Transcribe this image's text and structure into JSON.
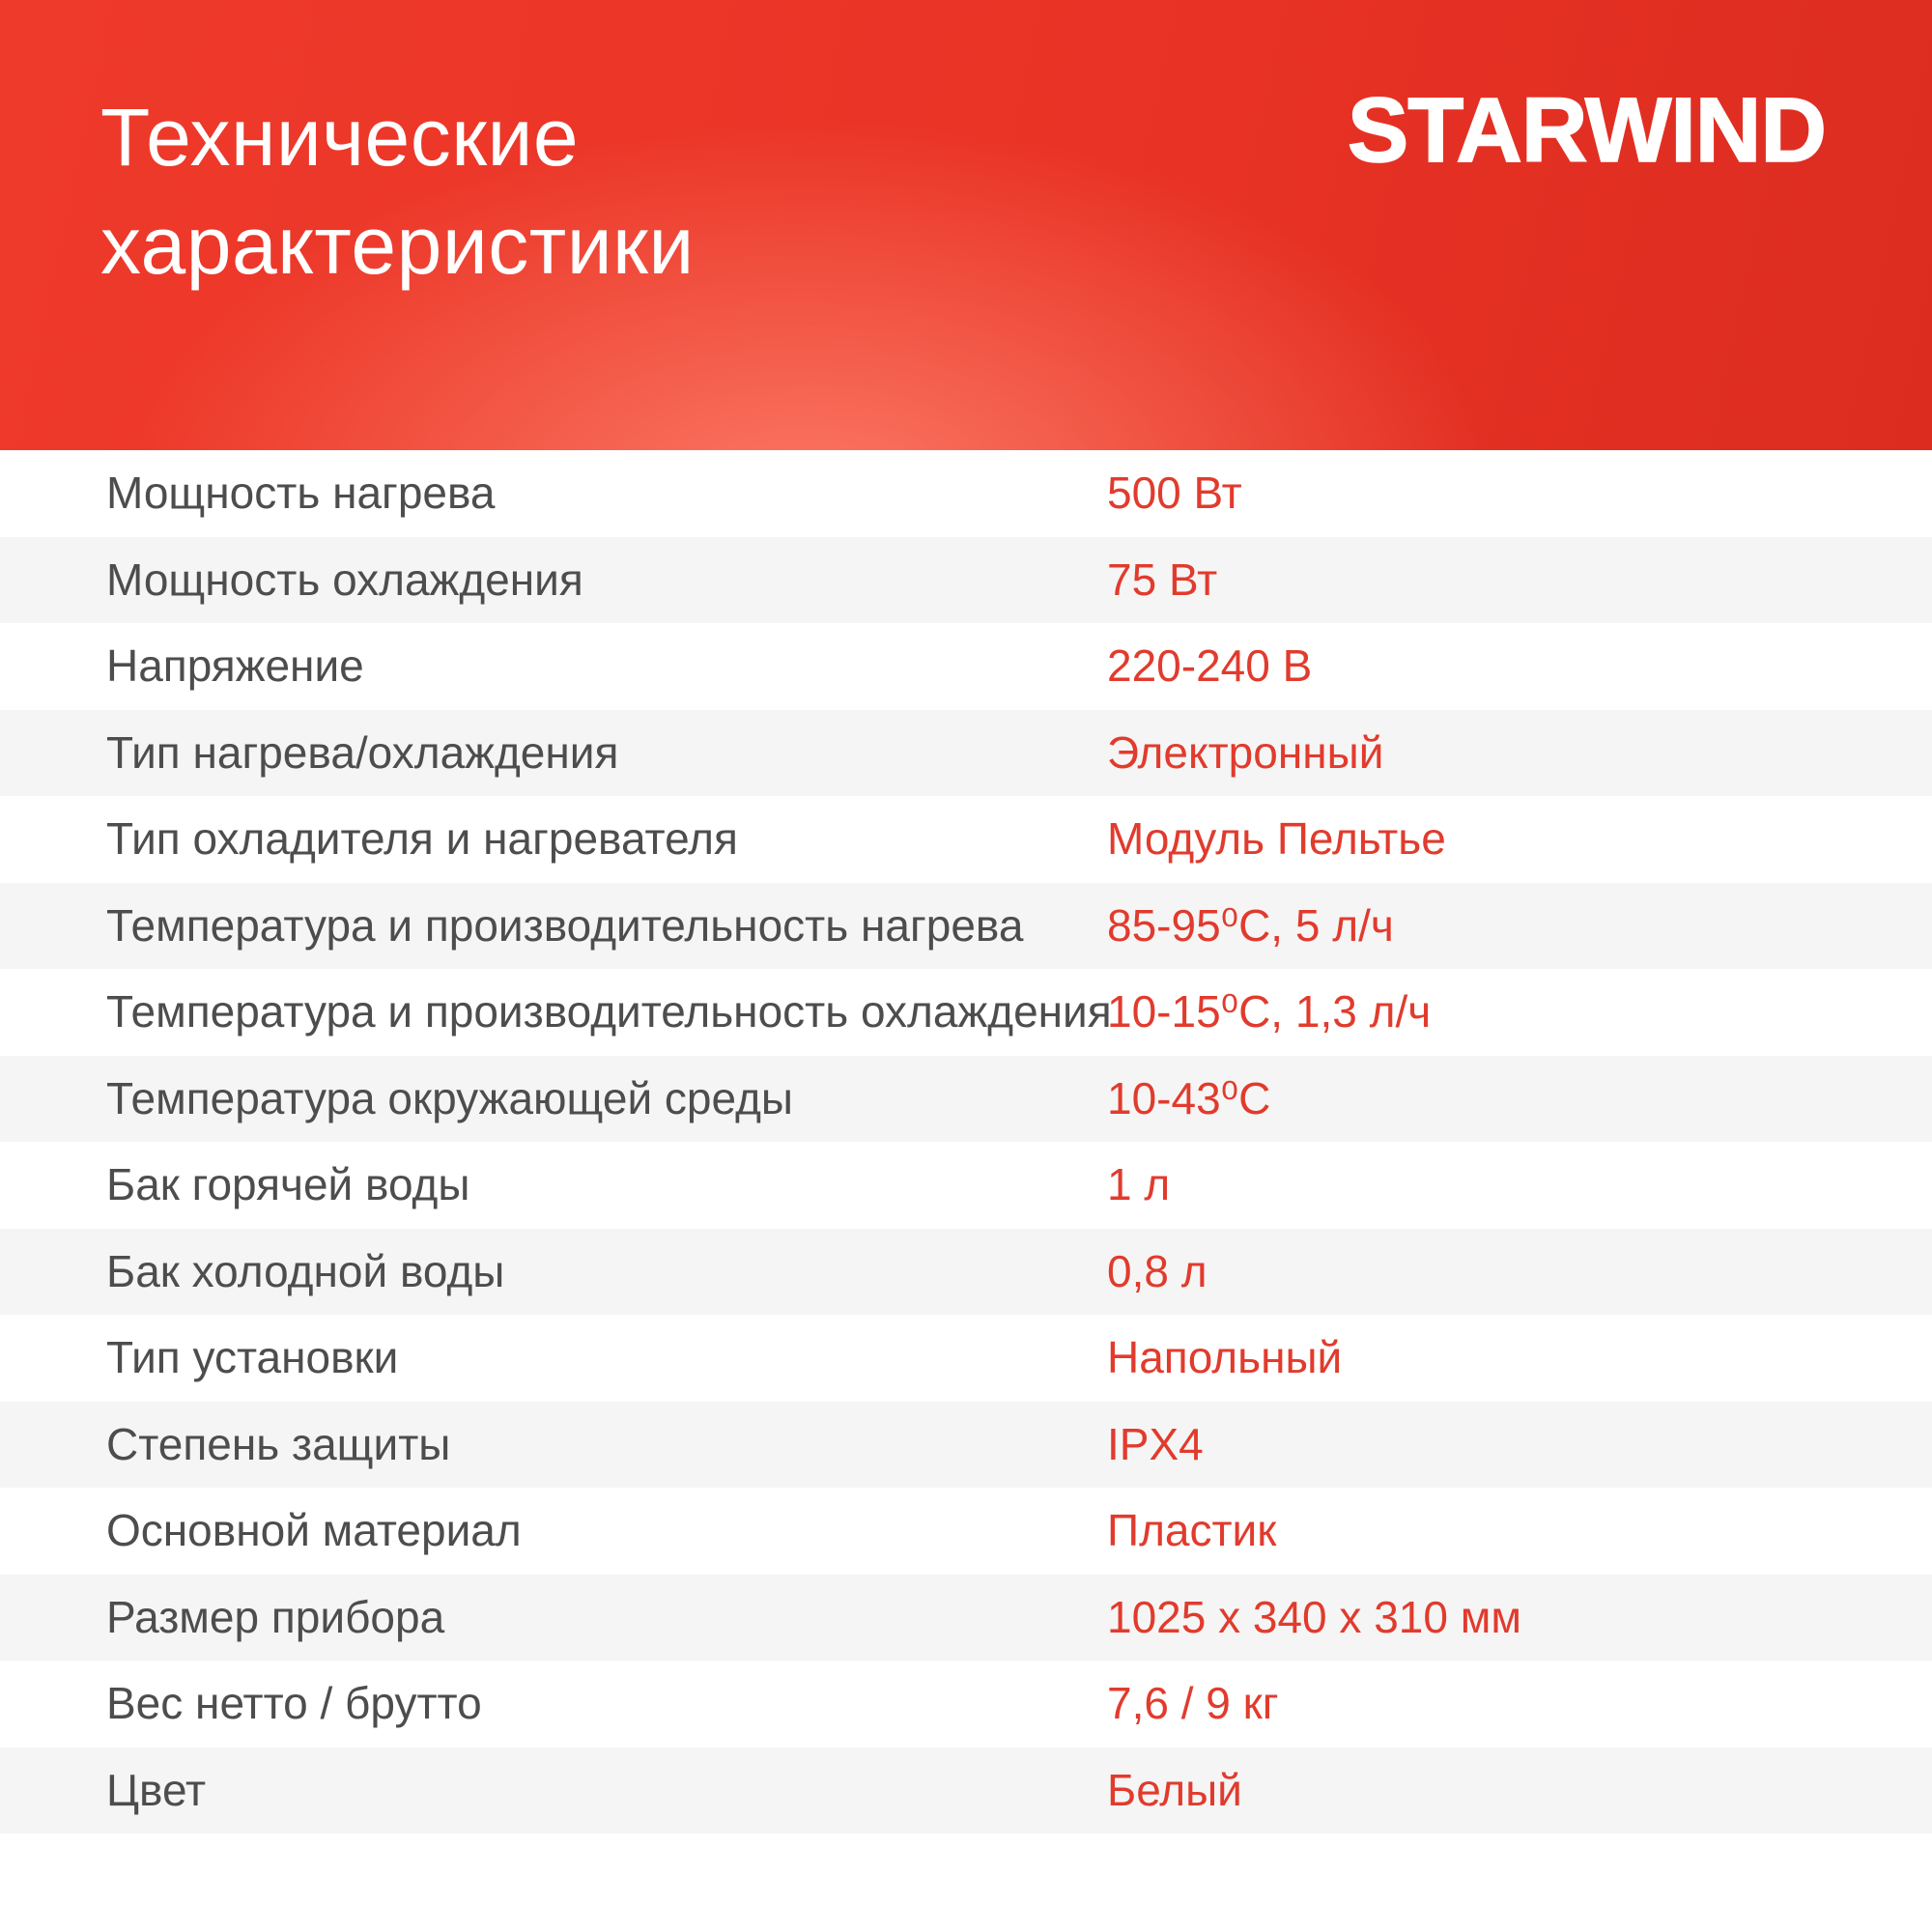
{
  "header": {
    "title": "Технические характеристики",
    "brand": "STARWIND"
  },
  "colors": {
    "header_red_left": "#ee3a2b",
    "header_red_right": "#dc2c20",
    "header_glow_salmon": "#f4695b",
    "title_white": "#ffffff",
    "label_gray": "#4d4d4d",
    "value_red": "#e13b2d",
    "row_bg": "#ffffff",
    "row_alt_bg": "#f5f5f5"
  },
  "specs": [
    {
      "label": "Мощность нагрева",
      "value": "500 Вт"
    },
    {
      "label": "Мощность охлаждения",
      "value": "75 Вт"
    },
    {
      "label": "Напряжение",
      "value": "220-240 В"
    },
    {
      "label": "Тип нагрева/охлаждения",
      "value": "Электронный"
    },
    {
      "label": "Тип охладителя и нагревателя",
      "value": "Модуль Пельтье"
    },
    {
      "label": "Температура и производительность нагрева",
      "value": "85-95⁰С, 5 л/ч"
    },
    {
      "label": "Температура и производительность охлаждения",
      "value": "10-15⁰С, 1,3 л/ч"
    },
    {
      "label": "Температура окружающей среды",
      "value": "10-43⁰С"
    },
    {
      "label": "Бак горячей воды",
      "value": "1 л"
    },
    {
      "label": "Бак холодной воды",
      "value": "0,8 л"
    },
    {
      "label": "Тип установки",
      "value": "Напольный"
    },
    {
      "label": "Степень защиты",
      "value": "IPX4"
    },
    {
      "label": "Основной материал",
      "value": "Пластик"
    },
    {
      "label": "Размер прибора",
      "value": "1025 x 340 x 310 мм"
    },
    {
      "label": "Вес нетто / брутто",
      "value": "7,6 / 9 кг"
    },
    {
      "label": "Цвет",
      "value": "Белый"
    }
  ]
}
